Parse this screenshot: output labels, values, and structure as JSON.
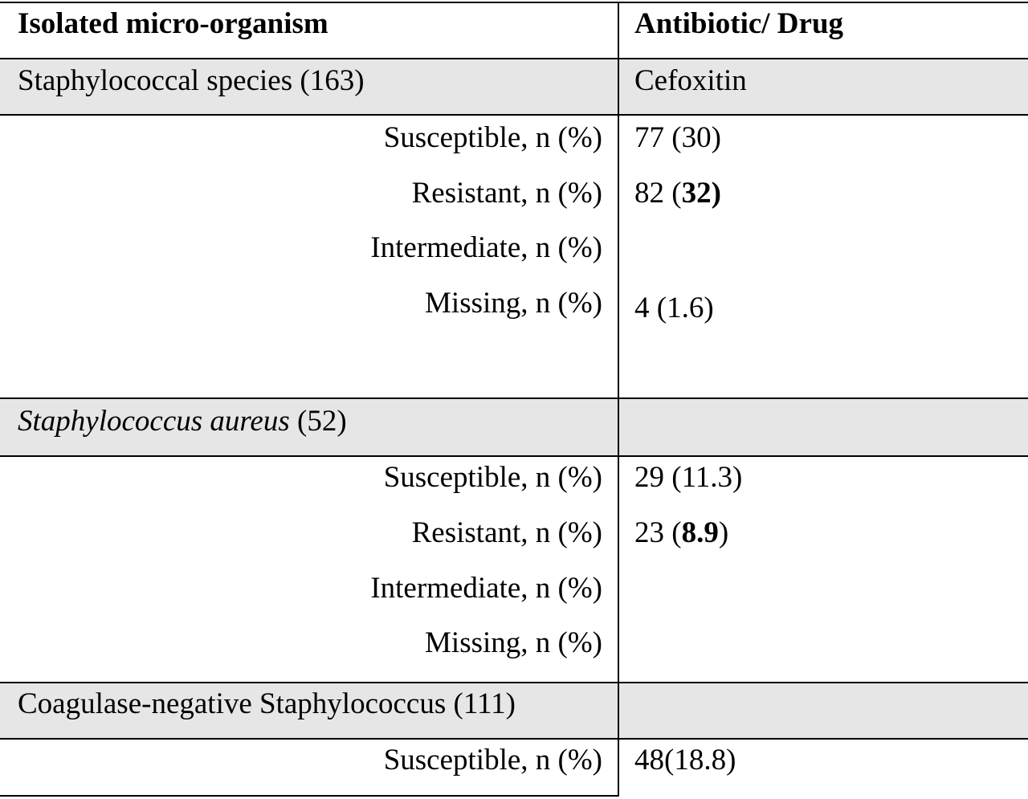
{
  "header": {
    "col1": "Isolated micro-organism",
    "col2": "Antibiotic/ Drug"
  },
  "sections": [
    {
      "title": "Staphylococcal species (163)",
      "drug": "Cefoxitin",
      "rows": [
        {
          "label": "Susceptible, n (%)",
          "value": "77 (30)"
        },
        {
          "label": "Resistant, n (%)",
          "value_prefix": "82 (",
          "value_bold": "32)",
          "value_suffix": ""
        },
        {
          "label": "Intermediate, n (%)",
          "value": ""
        },
        {
          "label": "Missing, n (%)",
          "value": "4 (1.6)"
        }
      ]
    },
    {
      "title_italic": "Staphylococcus aureus",
      "title_rest": " (52)",
      "drug": "",
      "rows": [
        {
          "label": "Susceptible, n (%)",
          "value": "29 (11.3)"
        },
        {
          "label": "Resistant, n (%)",
          "value_prefix": "23 (",
          "value_bold": "8.9",
          "value_suffix": ")"
        },
        {
          "label": "Intermediate, n (%)",
          "value": ""
        },
        {
          "label": "Missing, n (%)",
          "value": ""
        }
      ]
    },
    {
      "title": "Coagulase-negative Staphylococcus (111)",
      "drug": "",
      "rows": [
        {
          "label": "Susceptible, n (%)",
          "value": "48(18.8)"
        }
      ]
    }
  ]
}
